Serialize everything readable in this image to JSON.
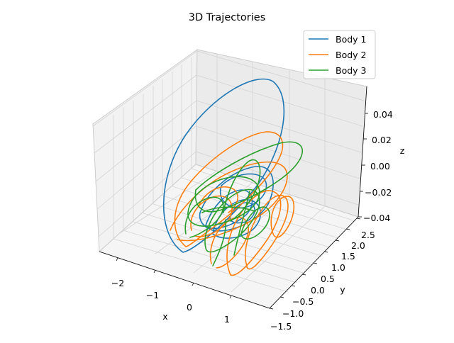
{
  "chart_data": {
    "type": "line",
    "title": "3D Trajectories",
    "axes": {
      "x": {
        "label": "x",
        "ticks": [
          "−2",
          "−1",
          "0",
          "1"
        ],
        "range": [
          -2.5,
          1.6
        ]
      },
      "y": {
        "label": "y",
        "ticks": [
          "−1.5",
          "−1.0",
          "−0.5",
          "0.0",
          "0.5",
          "1.0",
          "1.5",
          "2.0",
          "2.5"
        ],
        "range": [
          -1.5,
          2.5
        ]
      },
      "z": {
        "label": "z",
        "ticks": [
          "−0.04",
          "−0.02",
          "0.00",
          "0.02",
          "0.04"
        ],
        "range": [
          -0.04,
          0.05
        ]
      }
    },
    "grid": true,
    "legend_position": "top-right",
    "series": [
      {
        "name": "Body 1",
        "color": "#1f77b4"
      },
      {
        "name": "Body 2",
        "color": "#ff7f0e"
      },
      {
        "name": "Body 3",
        "color": "#2ca02c"
      }
    ]
  }
}
